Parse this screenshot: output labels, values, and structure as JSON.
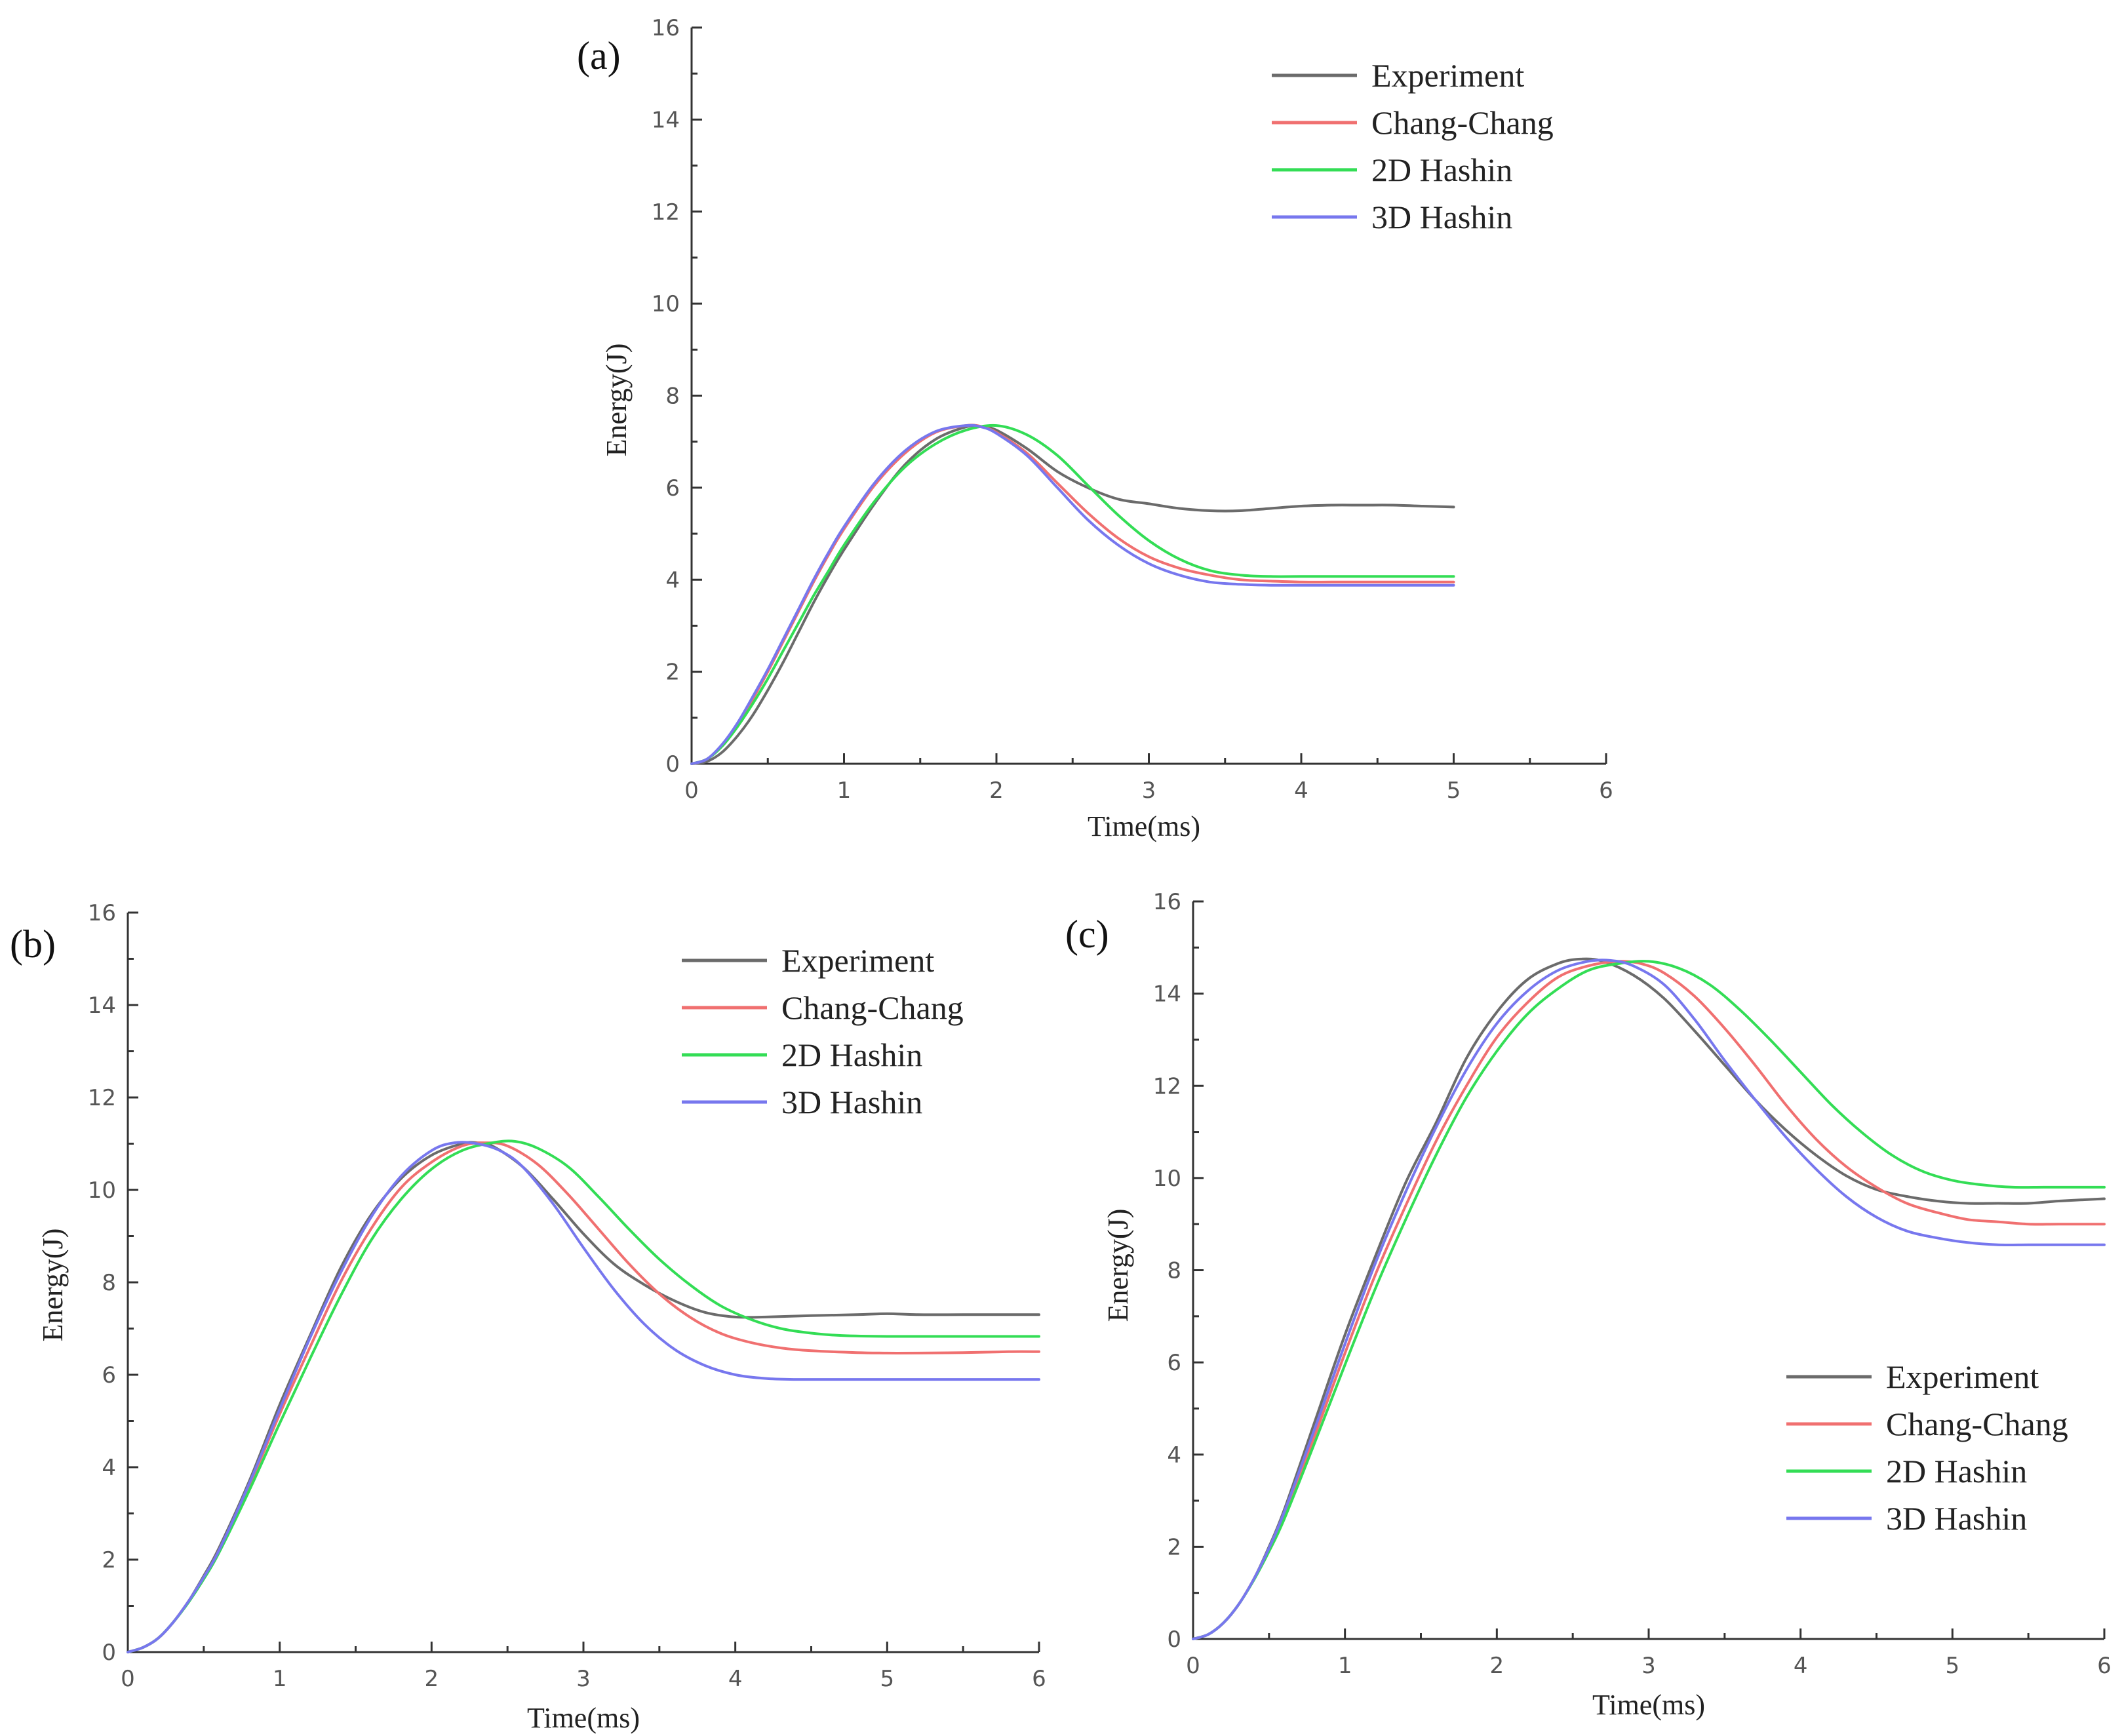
{
  "figure": {
    "series_colors": {
      "Experiment": "#6b6b6b",
      "Chang-Chang": "#f07070",
      "2D Hashin": "#33dd55",
      "3D Hashin": "#7777ee"
    }
  },
  "chart_data": [
    {
      "panel": "(a)",
      "type": "line",
      "title": "",
      "xlabel": "Time(ms)",
      "ylabel": "Energy(J)",
      "xlim": [
        0,
        6
      ],
      "ylim": [
        0,
        16
      ],
      "xticks": [
        0,
        1,
        2,
        3,
        4,
        5,
        6
      ],
      "yticks": [
        0,
        2,
        4,
        6,
        8,
        10,
        12,
        14,
        16
      ],
      "legend_position": "top-right",
      "series": [
        {
          "name": "Experiment",
          "x": [
            0,
            0.1,
            0.2,
            0.3,
            0.4,
            0.5,
            0.6,
            0.7,
            0.8,
            0.9,
            1.0,
            1.2,
            1.4,
            1.6,
            1.8,
            1.9,
            2.0,
            2.2,
            2.4,
            2.6,
            2.8,
            3.0,
            3.2,
            3.4,
            3.6,
            3.8,
            4.0,
            4.2,
            4.4,
            4.6,
            4.8,
            5.0
          ],
          "y": [
            0,
            0.05,
            0.25,
            0.6,
            1.05,
            1.6,
            2.2,
            2.85,
            3.5,
            4.1,
            4.65,
            5.65,
            6.5,
            7.05,
            7.32,
            7.33,
            7.25,
            6.85,
            6.35,
            6.0,
            5.75,
            5.65,
            5.55,
            5.5,
            5.5,
            5.55,
            5.6,
            5.62,
            5.62,
            5.62,
            5.6,
            5.58
          ]
        },
        {
          "name": "Chang-Chang",
          "x": [
            0,
            0.1,
            0.2,
            0.3,
            0.4,
            0.5,
            0.6,
            0.7,
            0.8,
            0.9,
            1.0,
            1.2,
            1.4,
            1.6,
            1.8,
            1.9,
            2.0,
            2.2,
            2.4,
            2.6,
            2.8,
            3.0,
            3.2,
            3.4,
            3.6,
            3.8,
            4.0,
            4.2,
            4.4,
            4.6,
            4.8,
            5.0
          ],
          "y": [
            0,
            0.1,
            0.4,
            0.85,
            1.4,
            2.0,
            2.65,
            3.3,
            3.95,
            4.55,
            5.1,
            6.05,
            6.75,
            7.2,
            7.35,
            7.33,
            7.2,
            6.75,
            6.1,
            5.45,
            4.9,
            4.5,
            4.25,
            4.1,
            4.0,
            3.97,
            3.95,
            3.95,
            3.95,
            3.95,
            3.95,
            3.95
          ]
        },
        {
          "name": "2D Hashin",
          "x": [
            0,
            0.1,
            0.2,
            0.3,
            0.4,
            0.5,
            0.6,
            0.7,
            0.8,
            0.9,
            1.0,
            1.2,
            1.4,
            1.6,
            1.8,
            2.0,
            2.2,
            2.4,
            2.6,
            2.8,
            3.0,
            3.2,
            3.4,
            3.6,
            3.8,
            4.0,
            4.2,
            4.4,
            4.6,
            4.8,
            5.0
          ],
          "y": [
            0,
            0.1,
            0.38,
            0.8,
            1.3,
            1.85,
            2.45,
            3.05,
            3.65,
            4.2,
            4.75,
            5.7,
            6.45,
            6.95,
            7.25,
            7.35,
            7.15,
            6.7,
            6.05,
            5.4,
            4.85,
            4.45,
            4.2,
            4.1,
            4.07,
            4.07,
            4.07,
            4.07,
            4.07,
            4.07,
            4.07
          ]
        },
        {
          "name": "3D Hashin",
          "x": [
            0,
            0.1,
            0.2,
            0.3,
            0.4,
            0.5,
            0.6,
            0.7,
            0.8,
            0.9,
            1.0,
            1.2,
            1.4,
            1.6,
            1.8,
            1.9,
            2.0,
            2.2,
            2.4,
            2.6,
            2.8,
            3.0,
            3.2,
            3.4,
            3.6,
            3.8,
            4.0,
            4.2,
            4.4,
            4.6,
            4.8,
            5.0
          ],
          "y": [
            0,
            0.1,
            0.42,
            0.88,
            1.45,
            2.05,
            2.7,
            3.35,
            4.0,
            4.6,
            5.15,
            6.1,
            6.8,
            7.22,
            7.35,
            7.32,
            7.18,
            6.7,
            6.0,
            5.3,
            4.75,
            4.35,
            4.1,
            3.95,
            3.9,
            3.88,
            3.88,
            3.88,
            3.88,
            3.88,
            3.88,
            3.88
          ]
        }
      ]
    },
    {
      "panel": "(b)",
      "type": "line",
      "title": "",
      "xlabel": "Time(ms)",
      "ylabel": "Energy(J)",
      "xlim": [
        0,
        6
      ],
      "ylim": [
        0,
        16
      ],
      "xticks": [
        0,
        1,
        2,
        3,
        4,
        5,
        6
      ],
      "yticks": [
        0,
        2,
        4,
        6,
        8,
        10,
        12,
        14,
        16
      ],
      "legend_position": "top-right",
      "series": [
        {
          "name": "Experiment",
          "x": [
            0,
            0.1,
            0.2,
            0.3,
            0.4,
            0.5,
            0.6,
            0.8,
            1.0,
            1.2,
            1.4,
            1.6,
            1.8,
            2.0,
            2.2,
            2.3,
            2.4,
            2.6,
            2.8,
            3.0,
            3.2,
            3.4,
            3.6,
            3.8,
            4.0,
            4.2,
            4.5,
            4.8,
            5.0,
            5.2,
            5.5,
            5.8,
            6.0
          ],
          "y": [
            0,
            0.1,
            0.3,
            0.65,
            1.1,
            1.65,
            2.25,
            3.7,
            5.35,
            6.85,
            8.3,
            9.45,
            10.25,
            10.75,
            11.0,
            11.02,
            10.95,
            10.5,
            9.8,
            9.05,
            8.4,
            7.95,
            7.6,
            7.35,
            7.25,
            7.25,
            7.28,
            7.3,
            7.32,
            7.3,
            7.3,
            7.3,
            7.3
          ]
        },
        {
          "name": "Chang-Chang",
          "x": [
            0,
            0.1,
            0.2,
            0.3,
            0.4,
            0.5,
            0.6,
            0.8,
            1.0,
            1.2,
            1.4,
            1.6,
            1.8,
            2.0,
            2.2,
            2.35,
            2.5,
            2.7,
            2.9,
            3.1,
            3.3,
            3.5,
            3.7,
            3.9,
            4.1,
            4.3,
            4.5,
            4.8,
            5.0,
            5.2,
            5.5,
            5.8,
            6.0
          ],
          "y": [
            0,
            0.1,
            0.3,
            0.65,
            1.1,
            1.6,
            2.2,
            3.6,
            5.15,
            6.6,
            8.0,
            9.15,
            10.05,
            10.6,
            10.95,
            11.02,
            10.95,
            10.55,
            9.9,
            9.15,
            8.4,
            7.75,
            7.25,
            6.9,
            6.7,
            6.58,
            6.52,
            6.48,
            6.47,
            6.47,
            6.48,
            6.5,
            6.5
          ]
        },
        {
          "name": "2D Hashin",
          "x": [
            0,
            0.1,
            0.2,
            0.3,
            0.4,
            0.5,
            0.6,
            0.8,
            1.0,
            1.2,
            1.4,
            1.6,
            1.8,
            2.0,
            2.2,
            2.4,
            2.55,
            2.7,
            2.9,
            3.1,
            3.3,
            3.5,
            3.7,
            3.9,
            4.1,
            4.3,
            4.5,
            4.7,
            5.0,
            5.3,
            5.6,
            6.0
          ],
          "y": [
            0,
            0.1,
            0.3,
            0.65,
            1.08,
            1.58,
            2.15,
            3.5,
            4.95,
            6.35,
            7.7,
            8.9,
            9.8,
            10.45,
            10.85,
            11.02,
            11.05,
            10.9,
            10.5,
            9.85,
            9.15,
            8.5,
            7.95,
            7.5,
            7.2,
            7.0,
            6.9,
            6.85,
            6.83,
            6.83,
            6.83,
            6.83
          ]
        },
        {
          "name": "3D Hashin",
          "x": [
            0,
            0.1,
            0.2,
            0.3,
            0.4,
            0.5,
            0.6,
            0.8,
            1.0,
            1.2,
            1.4,
            1.6,
            1.8,
            2.0,
            2.15,
            2.3,
            2.45,
            2.6,
            2.8,
            3.0,
            3.2,
            3.4,
            3.6,
            3.8,
            4.0,
            4.2,
            4.4,
            4.6,
            5.0,
            5.5,
            6.0
          ],
          "y": [
            0,
            0.1,
            0.3,
            0.65,
            1.1,
            1.62,
            2.2,
            3.65,
            5.25,
            6.8,
            8.2,
            9.4,
            10.3,
            10.85,
            11.02,
            11.0,
            10.85,
            10.5,
            9.7,
            8.75,
            7.85,
            7.1,
            6.55,
            6.2,
            6.0,
            5.92,
            5.9,
            5.9,
            5.9,
            5.9,
            5.9
          ]
        }
      ]
    },
    {
      "panel": "(c)",
      "type": "line",
      "title": "",
      "xlabel": "Time(ms)",
      "ylabel": "Energy(J)",
      "xlim": [
        0,
        6
      ],
      "ylim": [
        0,
        16
      ],
      "xticks": [
        0,
        1,
        2,
        3,
        4,
        5,
        6
      ],
      "yticks": [
        0,
        2,
        4,
        6,
        8,
        10,
        12,
        14,
        16
      ],
      "legend_position": "bottom-right",
      "series": [
        {
          "name": "Experiment",
          "x": [
            0,
            0.1,
            0.2,
            0.3,
            0.4,
            0.5,
            0.6,
            0.8,
            1.0,
            1.2,
            1.4,
            1.6,
            1.8,
            2.0,
            2.2,
            2.4,
            2.55,
            2.7,
            2.9,
            3.1,
            3.3,
            3.5,
            3.7,
            3.9,
            4.1,
            4.3,
            4.5,
            4.7,
            4.9,
            5.1,
            5.3,
            5.5,
            5.7,
            6.0
          ],
          "y": [
            0,
            0.1,
            0.35,
            0.75,
            1.3,
            2.0,
            2.8,
            4.7,
            6.6,
            8.3,
            9.9,
            11.2,
            12.6,
            13.6,
            14.3,
            14.65,
            14.75,
            14.7,
            14.4,
            13.9,
            13.2,
            12.45,
            11.7,
            11.05,
            10.5,
            10.05,
            9.75,
            9.6,
            9.5,
            9.45,
            9.45,
            9.45,
            9.5,
            9.55
          ]
        },
        {
          "name": "Chang-Chang",
          "x": [
            0,
            0.1,
            0.2,
            0.3,
            0.4,
            0.5,
            0.6,
            0.8,
            1.0,
            1.2,
            1.4,
            1.6,
            1.8,
            2.0,
            2.2,
            2.4,
            2.6,
            2.8,
            2.95,
            3.1,
            3.3,
            3.5,
            3.7,
            3.9,
            4.1,
            4.3,
            4.5,
            4.7,
            4.9,
            5.1,
            5.3,
            5.5,
            5.7,
            6.0
          ],
          "y": [
            0,
            0.1,
            0.35,
            0.75,
            1.3,
            1.95,
            2.7,
            4.4,
            6.2,
            7.9,
            9.4,
            10.8,
            12.0,
            13.05,
            13.8,
            14.35,
            14.6,
            14.7,
            14.65,
            14.45,
            13.95,
            13.25,
            12.45,
            11.6,
            10.85,
            10.25,
            9.8,
            9.45,
            9.25,
            9.1,
            9.05,
            9.0,
            9.0,
            9.0
          ]
        },
        {
          "name": "2D Hashin",
          "x": [
            0,
            0.1,
            0.2,
            0.3,
            0.4,
            0.5,
            0.6,
            0.8,
            1.0,
            1.2,
            1.4,
            1.6,
            1.8,
            2.0,
            2.2,
            2.4,
            2.6,
            2.8,
            3.0,
            3.2,
            3.4,
            3.6,
            3.8,
            4.0,
            4.2,
            4.4,
            4.6,
            4.8,
            5.0,
            5.2,
            5.4,
            5.6,
            5.8,
            6.0
          ],
          "y": [
            0,
            0.1,
            0.35,
            0.75,
            1.28,
            1.9,
            2.6,
            4.25,
            5.95,
            7.6,
            9.1,
            10.5,
            11.75,
            12.75,
            13.55,
            14.1,
            14.5,
            14.65,
            14.7,
            14.55,
            14.2,
            13.65,
            13.0,
            12.3,
            11.6,
            11.0,
            10.5,
            10.15,
            9.95,
            9.85,
            9.8,
            9.8,
            9.8,
            9.8
          ]
        },
        {
          "name": "3D Hashin",
          "x": [
            0,
            0.1,
            0.2,
            0.3,
            0.4,
            0.5,
            0.6,
            0.8,
            1.0,
            1.2,
            1.4,
            1.6,
            1.8,
            2.0,
            2.2,
            2.4,
            2.6,
            2.75,
            2.9,
            3.1,
            3.3,
            3.5,
            3.7,
            3.9,
            4.1,
            4.3,
            4.5,
            4.7,
            4.9,
            5.1,
            5.3,
            5.5,
            5.7,
            6.0
          ],
          "y": [
            0,
            0.1,
            0.35,
            0.75,
            1.3,
            1.97,
            2.75,
            4.55,
            6.4,
            8.15,
            9.7,
            11.1,
            12.35,
            13.35,
            14.05,
            14.5,
            14.7,
            14.72,
            14.6,
            14.2,
            13.45,
            12.55,
            11.7,
            10.9,
            10.2,
            9.6,
            9.15,
            8.85,
            8.7,
            8.6,
            8.55,
            8.55,
            8.55,
            8.55
          ]
        }
      ]
    }
  ]
}
